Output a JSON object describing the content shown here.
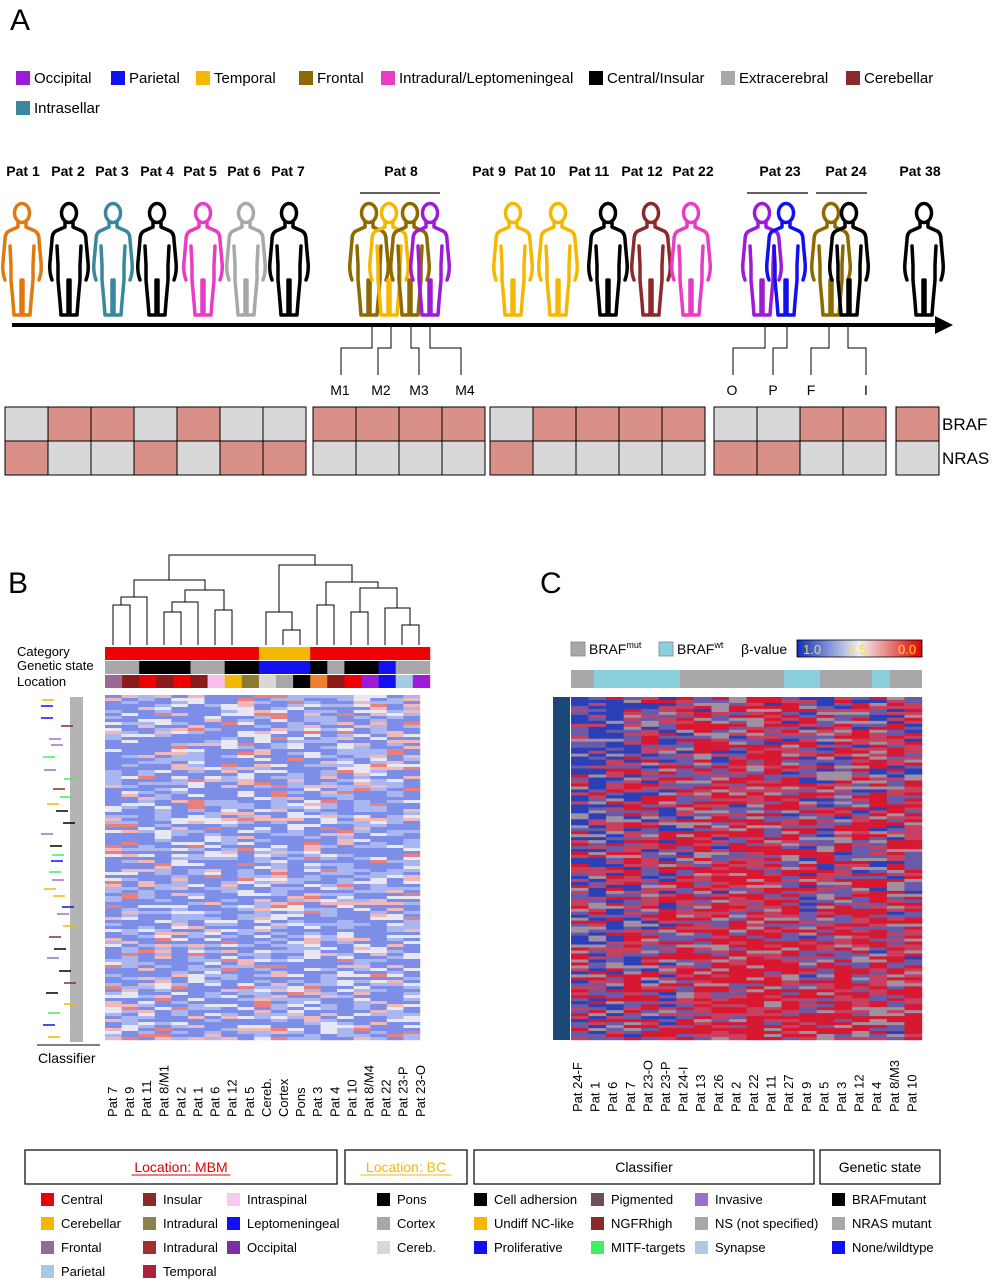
{
  "panels": {
    "a": "A",
    "b": "B",
    "c": "C"
  },
  "colors": {
    "Occipital": "#9b1bd6",
    "Parietal": "#1010f0",
    "Temporal": "#f5b800",
    "Frontal": "#8c6a00",
    "Intradural/Leptomeningeal": "#e83cc4",
    "Central/Insular": "#000000",
    "Extracerebral": "#a8a8a8",
    "Cerebellar": "#8b2a2a",
    "Intrasellar": "#3a88a0",
    "orangeFigure": "#e07a10",
    "mut": "#d99088",
    "wt": "#d8d8d8"
  },
  "legendA": [
    {
      "label": "Occipital",
      "color": "#9b1bd6"
    },
    {
      "label": "Parietal",
      "color": "#1010f0"
    },
    {
      "label": "Temporal",
      "color": "#f5b800"
    },
    {
      "label": "Frontal",
      "color": "#8c6a00"
    },
    {
      "label": "Intradural/Leptomeningeal",
      "color": "#e83cc4"
    },
    {
      "label": "Central/Insular",
      "color": "#000000"
    },
    {
      "label": "Extracerebral",
      "color": "#a8a8a8"
    },
    {
      "label": "Cerebellar",
      "color": "#8b2a2a"
    },
    {
      "label": "Intrasellar",
      "color": "#3a88a0"
    }
  ],
  "patientLabels": [
    "Pat 1",
    "Pat 2",
    "Pat 3",
    "Pat 4",
    "Pat 5",
    "Pat 6",
    "Pat 7",
    "Pat 8",
    "Pat 9",
    "Pat 10",
    "Pat 11",
    "Pat 12",
    "Pat 22",
    "Pat 23",
    "Pat 24",
    "Pat 38"
  ],
  "figures": [
    {
      "color": "#e07a10"
    },
    {
      "color": "#000000"
    },
    {
      "color": "#3a88a0"
    },
    {
      "color": "#000000"
    },
    {
      "color": "#e83cc4"
    },
    {
      "color": "#a8a8a8"
    },
    {
      "color": "#000000"
    },
    {
      "color": "#8c6a00"
    },
    {
      "color": "#f5b800"
    },
    {
      "color": "#8c6a00"
    },
    {
      "color": "#9b1bd6"
    },
    {
      "color": "#f5b800"
    },
    {
      "color": "#f5b800"
    },
    {
      "color": "#000000"
    },
    {
      "color": "#8b2a2a"
    },
    {
      "color": "#e83cc4"
    },
    {
      "color": "#9b1bd6"
    },
    {
      "color": "#1010f0"
    },
    {
      "color": "#8c6a00"
    },
    {
      "color": "#000000"
    },
    {
      "color": "#000000"
    }
  ],
  "subLabels": [
    "M1",
    "M2",
    "M3",
    "M4",
    "O",
    "P",
    "F",
    "I"
  ],
  "mutationRows": [
    {
      "gene": "BRAF",
      "groups": [
        [
          0,
          1,
          1,
          0,
          1,
          0,
          0
        ],
        [
          1,
          1,
          1,
          1
        ],
        [
          0,
          1,
          1,
          1,
          1
        ],
        [
          0,
          0,
          1,
          1
        ],
        [
          1
        ]
      ]
    },
    {
      "gene": "NRAS",
      "groups": [
        [
          1,
          0,
          0,
          1,
          0,
          1,
          1
        ],
        [
          0,
          0,
          0,
          0
        ],
        [
          1,
          0,
          0,
          0,
          0
        ],
        [
          1,
          1,
          0,
          0
        ],
        [
          0
        ]
      ]
    }
  ],
  "panelB": {
    "rowLabels": [
      "Category",
      "Genetic state",
      "Location"
    ],
    "columns": [
      "Pat 7",
      "Pat 9",
      "Pat 11",
      "Pat 8/M1",
      "Pat 2",
      "Pat 1",
      "Pat 6",
      "Pat 12",
      "Pat 5",
      "Cereb.",
      "Cortex",
      "Pons",
      "Pat 3",
      "Pat 4",
      "Pat 10",
      "Pat 8/M4",
      "Pat 22",
      "Pat 23-P",
      "Pat 23-O"
    ],
    "category": [
      "#f00000",
      "#f00000",
      "#f00000",
      "#f00000",
      "#f00000",
      "#f00000",
      "#f00000",
      "#f00000",
      "#f00000",
      "#f5b800",
      "#f5b800",
      "#f5b800",
      "#f00000",
      "#f00000",
      "#f00000",
      "#f00000",
      "#f00000",
      "#f00000",
      "#f00000"
    ],
    "genetic": [
      "#a8a8a8",
      "#a8a8a8",
      "#000000",
      "#000000",
      "#000000",
      "#a8a8a8",
      "#a8a8a8",
      "#000000",
      "#000000",
      "#1010f0",
      "#1010f0",
      "#1010f0",
      "#000000",
      "#a8a8a8",
      "#000000",
      "#000000",
      "#1010f0",
      "#a8a8a8",
      "#a8a8a8"
    ],
    "location": [
      "#9a6890",
      "#8b1a1a",
      "#f00000",
      "#8b1a1a",
      "#f00000",
      "#8b1a1a",
      "#f8c0f0",
      "#f5b800",
      "#8c7a30",
      "#d8d8d8",
      "#a8a8a8",
      "#000000",
      "#f08030",
      "#8b1a1a",
      "#f00000",
      "#9b1bd6",
      "#1010f0",
      "#a8c8e8",
      "#9b1bd6"
    ],
    "classifierLabel": "Classifier"
  },
  "panelC": {
    "legend": {
      "mut": "BRAF",
      "mutSup": "mut",
      "wt": "BRAF",
      "wtSup": "wt",
      "beta": "β-value",
      "b1": "1.0",
      "b2": "0.5",
      "b3": "0.0"
    },
    "columns": [
      "Pat 24-F",
      "Pat 1",
      "Pat 6",
      "Pat 7",
      "Pat 23-O",
      "Pat 23-P",
      "Pat 24-I",
      "Pat 13",
      "Pat 26",
      "Pat 2",
      "Pat 22",
      "Pat 11",
      "Pat 27",
      "Pat 9",
      "Pat 5",
      "Pat 3",
      "Pat 12",
      "Pat 4",
      "Pat 8/M3",
      "Pat 10"
    ]
  },
  "bottomLegend": {
    "headers": [
      {
        "text": "Location: MBM",
        "color": "#e00000"
      },
      {
        "text": "Location: BC",
        "color": "#f5b800"
      },
      {
        "text": "Classifier",
        "color": "#000000"
      },
      {
        "text": "Genetic state",
        "color": "#000000"
      }
    ],
    "mbm": [
      {
        "label": "Central",
        "color": "#f00000"
      },
      {
        "label": "Cerebellar",
        "color": "#f5b800"
      },
      {
        "label": "Frontal",
        "color": "#9a6890"
      },
      {
        "label": "Parietal",
        "color": "#a8c8e8"
      },
      {
        "label": "Insular",
        "color": "#8b2a2a"
      },
      {
        "label": "Intradural",
        "color": "#8a8050"
      },
      {
        "label": "Intradural",
        "color": "#a03030"
      },
      {
        "label": "Temporal",
        "color": "#b02040"
      },
      {
        "label": "Intraspinal",
        "color": "#f8c8f0"
      },
      {
        "label": "Leptomeningeal",
        "color": "#1010f0"
      },
      {
        "label": "Occipital",
        "color": "#7a30a0"
      }
    ],
    "bc": [
      {
        "label": "Pons",
        "color": "#000000"
      },
      {
        "label": "Cortex",
        "color": "#a8a8a8"
      },
      {
        "label": "Cereb.",
        "color": "#d8d8d8"
      }
    ],
    "classifier": [
      {
        "label": "Cell adhersion",
        "color": "#000000"
      },
      {
        "label": "Undiff NC-like",
        "color": "#f5b800"
      },
      {
        "label": "Proliferative",
        "color": "#1010f0"
      },
      {
        "label": "Pigmented",
        "color": "#6a5050"
      },
      {
        "label": "NGFRhigh",
        "color": "#8b2a2a"
      },
      {
        "label": "MITF-targets",
        "color": "#40f060"
      },
      {
        "label": "Invasive",
        "color": "#9a70c8"
      },
      {
        "label": "NS (not specified)",
        "color": "#a8a8a8"
      },
      {
        "label": "Synapse",
        "color": "#b0c8e8"
      }
    ],
    "genetic": [
      {
        "label": "BRAFmutant",
        "color": "#000000"
      },
      {
        "label": "NRAS mutant",
        "color": "#a8a8a8"
      },
      {
        "label": "None/wildtype",
        "color": "#1010f0"
      }
    ]
  }
}
